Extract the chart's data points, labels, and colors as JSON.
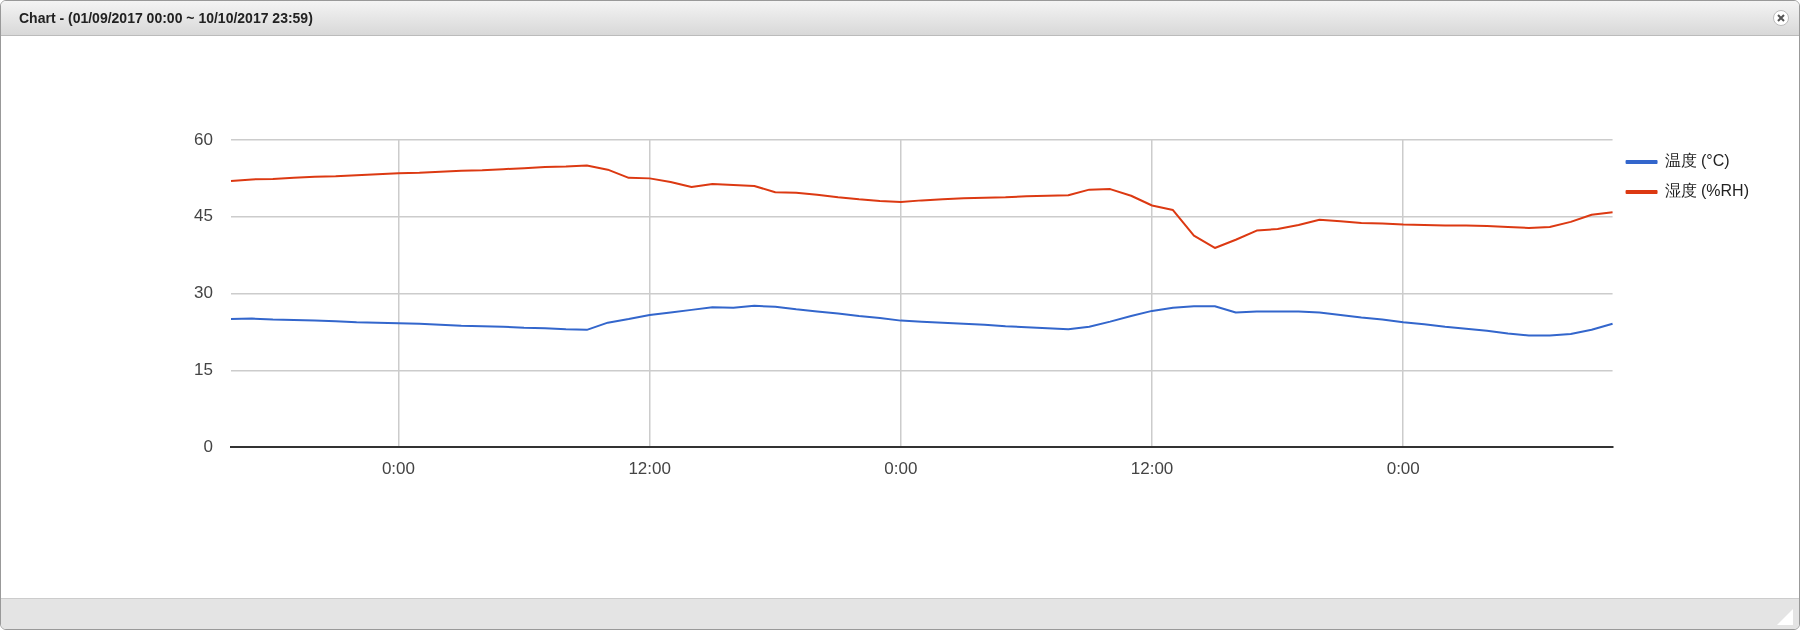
{
  "chart_data": {
    "type": "line",
    "title": "Chart - (01/09/2017 00:00 ~ 10/10/2017 23:59)",
    "categories": [
      null,
      null,
      null,
      null,
      null,
      null,
      null,
      null,
      "0:00",
      null,
      null,
      null,
      null,
      null,
      null,
      null,
      null,
      null,
      null,
      null,
      "12:00",
      null,
      null,
      null,
      null,
      null,
      null,
      null,
      null,
      null,
      null,
      null,
      "0:00",
      null,
      null,
      null,
      null,
      null,
      null,
      null,
      null,
      null,
      null,
      null,
      "12:00",
      null,
      null,
      null,
      null,
      null,
      null,
      null,
      null,
      null,
      null,
      null,
      "0:00",
      null,
      null,
      null,
      null,
      null,
      null,
      null,
      null,
      null,
      null
    ],
    "ylim": [
      0,
      60
    ],
    "yticks": [
      0,
      15,
      30,
      45,
      60
    ],
    "grid": true,
    "legend": "right",
    "marker": "none",
    "line_style": "solid",
    "series": [
      {
        "name": "温度 (°C)",
        "color": "#3366cc",
        "values": [
          25.0,
          25.1,
          24.9,
          24.8,
          24.7,
          24.6,
          24.4,
          24.3,
          24.2,
          24.1,
          23.9,
          23.7,
          23.6,
          23.5,
          23.3,
          23.2,
          23.0,
          22.9,
          24.3,
          25.0,
          25.8,
          26.3,
          26.8,
          27.3,
          27.2,
          27.6,
          27.4,
          26.9,
          26.5,
          26.1,
          25.6,
          25.2,
          24.7,
          24.5,
          24.3,
          24.1,
          23.9,
          23.6,
          23.4,
          23.2,
          23.0,
          23.5,
          24.5,
          25.6,
          26.6,
          27.2,
          27.5,
          27.5,
          26.3,
          26.5,
          26.5,
          26.5,
          26.3,
          25.8,
          25.3,
          24.9,
          24.4,
          24.0,
          23.5,
          23.1,
          22.7,
          22.2,
          21.8,
          21.8,
          22.1,
          22.9,
          24.1
        ]
      },
      {
        "name": "湿度 (%RH)",
        "color": "#dc3912",
        "values": [
          52.0,
          52.3,
          52.4,
          52.6,
          52.8,
          52.9,
          53.1,
          53.3,
          53.5,
          53.6,
          53.8,
          54.0,
          54.1,
          54.3,
          54.5,
          54.7,
          54.8,
          55.0,
          54.2,
          52.6,
          52.5,
          51.8,
          50.8,
          51.4,
          51.2,
          51.0,
          49.8,
          49.7,
          49.3,
          48.8,
          48.4,
          48.1,
          47.9,
          48.2,
          48.4,
          48.6,
          48.7,
          48.8,
          49.0,
          49.1,
          49.2,
          50.3,
          50.4,
          49.1,
          47.2,
          46.3,
          41.3,
          38.9,
          40.5,
          42.3,
          42.6,
          43.4,
          44.4,
          44.1,
          43.8,
          43.7,
          43.5,
          43.4,
          43.3,
          43.3,
          43.2,
          43.0,
          42.8,
          43.0,
          44.0,
          45.4,
          45.9
        ]
      }
    ]
  }
}
